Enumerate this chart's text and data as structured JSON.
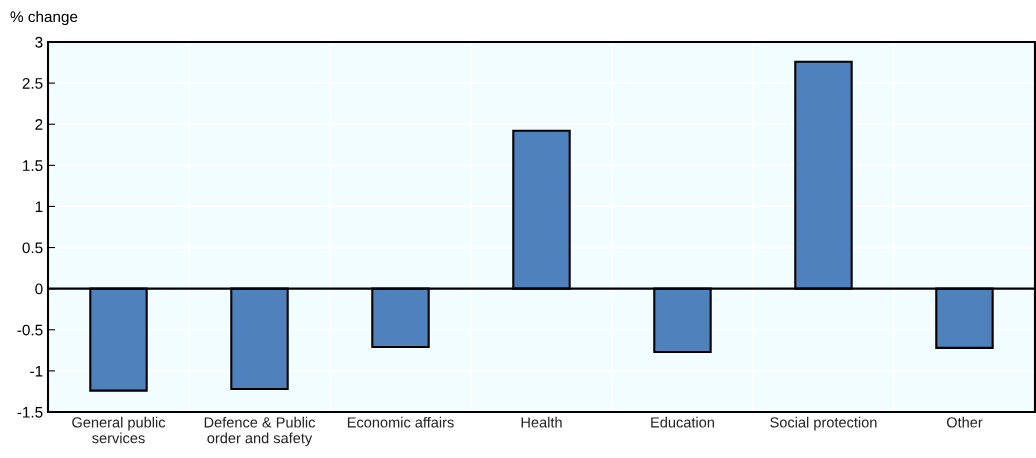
{
  "chart_data": {
    "type": "bar",
    "ylabel": "% change",
    "categories": [
      "General public\nservices",
      "Defence & Public\norder and safety",
      "Economic affairs",
      "Health",
      "Education",
      "Social protection",
      "Other"
    ],
    "values": [
      -1.24,
      -1.22,
      -0.71,
      1.92,
      -0.77,
      2.76,
      -0.72
    ],
    "color": "#4f81bd",
    "ylim": [
      -1.5,
      3
    ],
    "yticks": [
      -1.5,
      -1,
      -0.5,
      0,
      0.5,
      1,
      1.5,
      2,
      2.5,
      3
    ],
    "grid": true,
    "legend": false
  }
}
